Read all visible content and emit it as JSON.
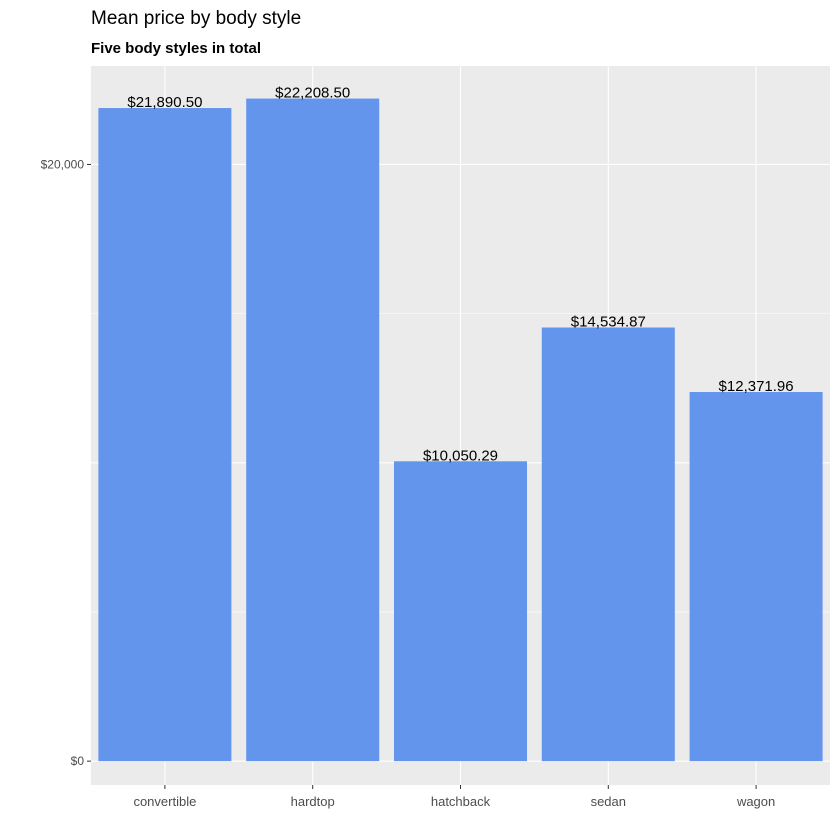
{
  "chart_data": {
    "type": "bar",
    "title": "Mean price by body style",
    "subtitle": "Five body styles in total",
    "xlabel": "",
    "ylabel": "",
    "categories": [
      "convertible",
      "hardtop",
      "hatchback",
      "sedan",
      "wagon"
    ],
    "values": [
      21890.5,
      22208.5,
      10050.29,
      14534.87,
      12371.96
    ],
    "data_labels": [
      "$21,890.50",
      "$22,208.50",
      "$10,050.29",
      "$14,534.87",
      "$12,371.96"
    ],
    "yticks": [
      0,
      10000,
      20000
    ],
    "ytick_labels": [
      "$0",
      "",
      "$20,000"
    ],
    "ylim": [
      -800,
      23300
    ],
    "grid": true,
    "legend": "none",
    "colors": {
      "bar": "#6495ED",
      "panel": "#EBEBEB",
      "grid": "#FFFFFF",
      "axis_text": "#4D4D4D",
      "tick": "#333333"
    }
  }
}
